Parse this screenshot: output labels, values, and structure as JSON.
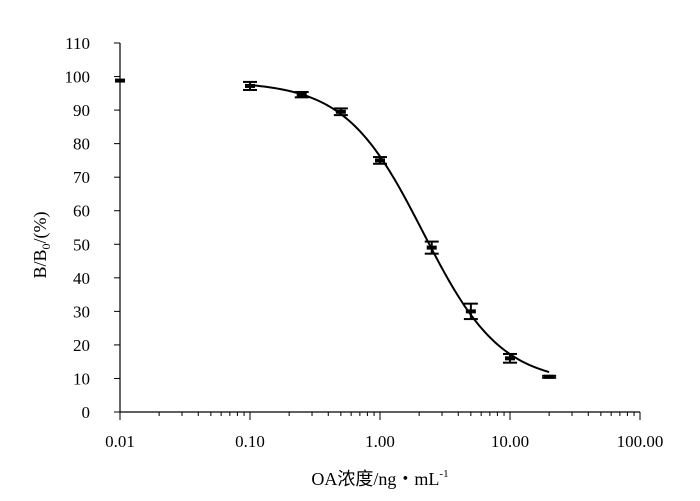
{
  "chart_data": {
    "type": "scatter",
    "title": "",
    "xlabel": {
      "main": "OA浓度/ng・mL",
      "superscript": "-1"
    },
    "ylabel": {
      "prefix": "B/B",
      "subscript": "0",
      "suffix": "/(%)"
    },
    "x_scale": "log",
    "xlim": [
      0.01,
      100
    ],
    "ylim": [
      0,
      110
    ],
    "grid": false,
    "x_ticks": [
      {
        "value": 0.01,
        "label": "0.01"
      },
      {
        "value": 0.1,
        "label": "0.10"
      },
      {
        "value": 1,
        "label": "1.00"
      },
      {
        "value": 10,
        "label": "10.00"
      },
      {
        "value": 100,
        "label": "100.00"
      }
    ],
    "y_ticks": [
      {
        "value": 0,
        "label": "0"
      },
      {
        "value": 10,
        "label": "10"
      },
      {
        "value": 20,
        "label": "20"
      },
      {
        "value": 30,
        "label": "30"
      },
      {
        "value": 40,
        "label": "40"
      },
      {
        "value": 50,
        "label": "50"
      },
      {
        "value": 60,
        "label": "60"
      },
      {
        "value": 70,
        "label": "70"
      },
      {
        "value": 80,
        "label": "80"
      },
      {
        "value": 90,
        "label": "90"
      },
      {
        "value": 100,
        "label": "100"
      },
      {
        "value": 110,
        "label": "110"
      }
    ],
    "series": [
      {
        "points": [
          {
            "x": 0.01,
            "y": 98.8,
            "err": 0
          },
          {
            "x": 0.1,
            "y": 97.2,
            "err": 1.2
          },
          {
            "x": 0.25,
            "y": 94.6,
            "err": 0.8
          },
          {
            "x": 0.5,
            "y": 89.5,
            "err": 1.0
          },
          {
            "x": 1.0,
            "y": 75.0,
            "err": 1.0
          },
          {
            "x": 2.5,
            "y": 49.0,
            "err": 1.8
          },
          {
            "x": 5.0,
            "y": 30.0,
            "err": 2.3
          },
          {
            "x": 10.0,
            "y": 16.0,
            "err": 1.3
          },
          {
            "x": 20.0,
            "y": 10.5,
            "err": 0.3
          }
        ],
        "fit_curve": {
          "type": "four-parameter-logistic",
          "x_range": [
            0.1,
            20
          ]
        }
      }
    ]
  }
}
